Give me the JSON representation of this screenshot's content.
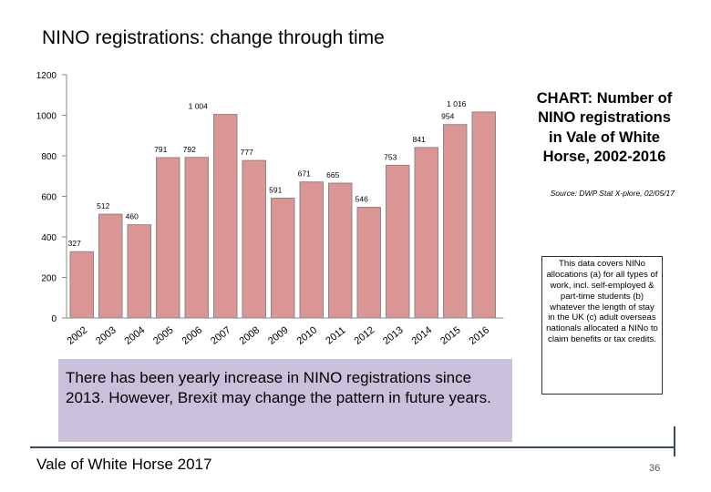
{
  "page": {
    "title": "NINO registrations: change through time",
    "side_title": "CHART: Number of NINO registrations in Vale of White Horse, 2002-2016",
    "source": "Source: DWP Stat X-plore, 02/05/17",
    "note": "This data covers NINo allocations (a) for all types of work, incl. self-employed & part-time students (b) whatever the length of stay in the UK (c) adult overseas nationals allocated a NINo to claim benefits or tax credits.",
    "summary": "There has been yearly increase in NINO registrations since 2013.  However, Brexit may change the pattern in future years.",
    "footer": "Vale of White Horse 2017",
    "page_number": "36"
  },
  "colors": {
    "bar_fill": "#d99694",
    "bar_stroke": "#888888",
    "summary_bg": "#c9c1dc",
    "corner_line": "#3a4a5e"
  },
  "chart_data": {
    "type": "bar",
    "title": "CHART: Number of NINO registrations in Vale of White Horse, 2002-2016",
    "categories": [
      "2002",
      "2003",
      "2004",
      "2005",
      "2006",
      "2007",
      "2008",
      "2009",
      "2010",
      "2011",
      "2012",
      "2013",
      "2014",
      "2015",
      "2016"
    ],
    "values": [
      327,
      512,
      460,
      791,
      792,
      1004,
      777,
      591,
      671,
      665,
      546,
      753,
      841,
      954,
      1016
    ],
    "value_labels": [
      "327",
      "512",
      "460",
      "791",
      "792",
      "1 004",
      "777",
      "591",
      "671",
      "665",
      "546",
      "753",
      "841",
      "954",
      "1 016"
    ],
    "yticks": [
      "0",
      "200",
      "400",
      "600",
      "800",
      "1000",
      "1200"
    ],
    "ylim": [
      0,
      1200
    ],
    "xlabel": "",
    "ylabel": "",
    "grid": false,
    "legend": "none"
  }
}
